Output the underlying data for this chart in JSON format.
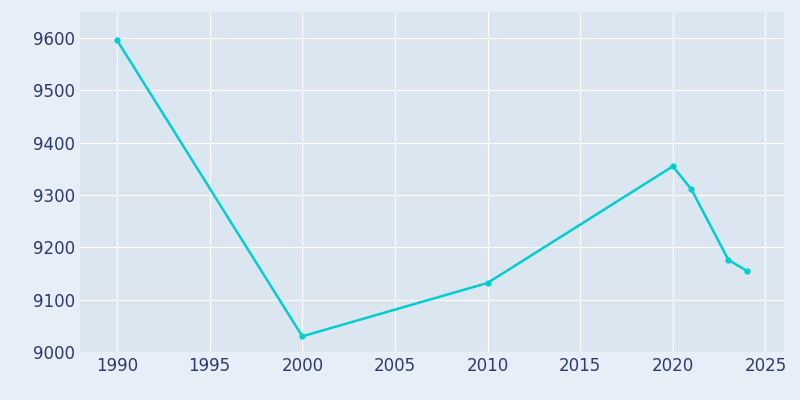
{
  "years": [
    1990,
    2000,
    2010,
    2020,
    2021,
    2023,
    2024
  ],
  "population": [
    9596,
    9030,
    9132,
    9355,
    9311,
    9176,
    9155
  ],
  "line_color": "#00CED1",
  "line_width": 1.8,
  "fig_bg_color": "#e8eef7",
  "plot_bg_color": "#dce6f0",
  "grid_color": "#ffffff",
  "tick_label_color": "#2d3a6b",
  "xlim": [
    1988,
    2026
  ],
  "ylim": [
    9000,
    9650
  ],
  "xticks": [
    1990,
    1995,
    2000,
    2005,
    2010,
    2015,
    2020,
    2025
  ],
  "yticks": [
    9000,
    9100,
    9200,
    9300,
    9400,
    9500,
    9600
  ],
  "tick_fontsize": 12,
  "marker_size": 3.5
}
